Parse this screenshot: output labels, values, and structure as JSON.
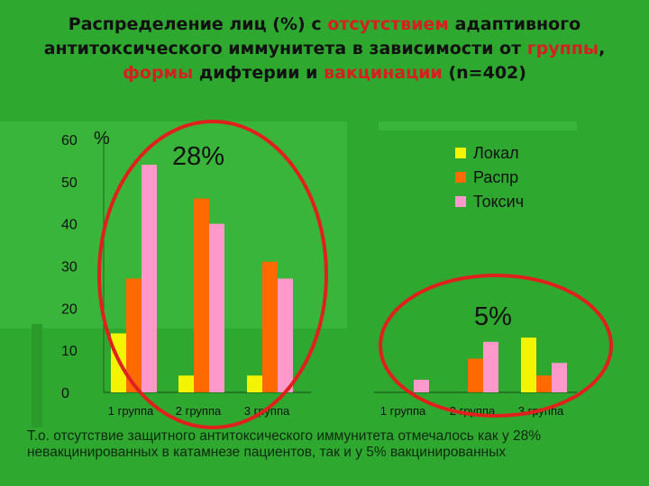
{
  "title": {
    "parts": [
      {
        "text": "Распределение лиц (%) с ",
        "hl": false
      },
      {
        "text": "отсутствием",
        "hl": true
      },
      {
        "text": " адаптивного антитоксического иммунитета в зависимости от ",
        "hl": false
      },
      {
        "text": "группы",
        "hl": true
      },
      {
        "text": ", ",
        "hl": false
      },
      {
        "text": "формы",
        "hl": true
      },
      {
        "text": " дифтерии и ",
        "hl": false
      },
      {
        "text": "вакцинации",
        "hl": true
      },
      {
        "text": " (n=402)",
        "hl": false
      }
    ]
  },
  "colors": {
    "background": "#2fa82f",
    "Локал": "#f4f400",
    "Распр": "#ff6a00",
    "Токсич": "#ff99cc",
    "ellipse": "#e0201c",
    "highlight_text": "#d42020"
  },
  "chart_data": {
    "type": "bar",
    "ylabel": "%",
    "ylim": [
      0,
      60
    ],
    "yticks": [
      0,
      10,
      20,
      30,
      40,
      50,
      60
    ],
    "grid": false,
    "legend": {
      "placement": "top-right",
      "entries": [
        "Локал",
        "Распр",
        "Токсич"
      ]
    },
    "groups": [
      {
        "categories": [
          "1 группа",
          "2 группа",
          "3 группа"
        ],
        "series": [
          {
            "name": "Локал",
            "values": [
              14,
              4,
              4
            ]
          },
          {
            "name": "Распр",
            "values": [
              27,
              46,
              31
            ]
          },
          {
            "name": "Токсич",
            "values": [
              54,
              40,
              27
            ]
          }
        ],
        "annotation": "28%"
      },
      {
        "categories": [
          "1 группа",
          "2 группа",
          "3 группа"
        ],
        "series": [
          {
            "name": "Локал",
            "values": [
              0,
              0,
              13
            ]
          },
          {
            "name": "Распр",
            "values": [
              0,
              8,
              4
            ]
          },
          {
            "name": "Токсич",
            "values": [
              3,
              12,
              7
            ]
          }
        ],
        "annotation": "5%"
      }
    ]
  },
  "caption": "Т.о. отсутствие защитного антитоксического иммунитета отмечалось как у 28% невакцинированных в катамнезе пациентов, так и у 5% вакцинированных"
}
